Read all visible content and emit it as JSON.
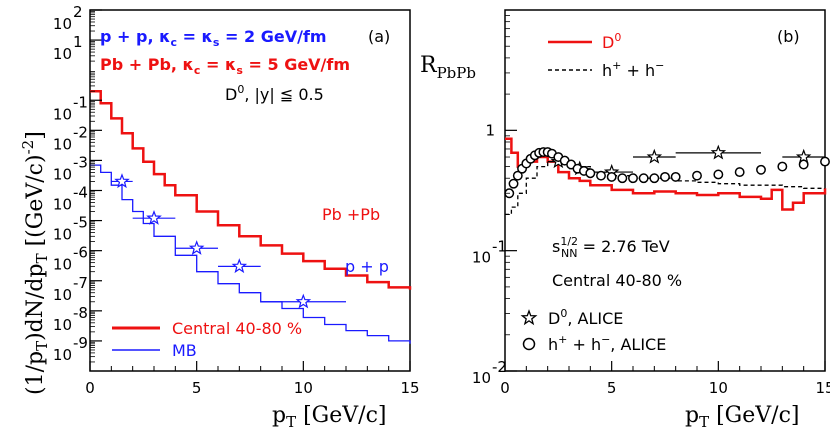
{
  "chart_data": [
    {
      "panel_label": "(a)",
      "type": "line",
      "xlabel": "p_T [GeV/c]",
      "ylabel": "(1/p_T)dN/dp_T [(GeV/c)^-2]",
      "xlim": [
        0,
        15
      ],
      "ylim": [
        1e-10,
        100
      ],
      "yscale": "log",
      "x_ticks": [
        "0",
        "5",
        "10",
        "15"
      ],
      "y_tick_mantissa": "10",
      "y_tick_exponents": [
        "-9",
        "-8",
        "-7",
        "-6",
        "-5",
        "-4",
        "-3",
        "-2",
        "-1",
        "1",
        "2"
      ],
      "annotations": [
        {
          "text": "p + p, κc = κs = 2 GeV/fm",
          "color": "#1a1aff"
        },
        {
          "text": "Pb + Pb, κc = κs = 5 GeV/fm",
          "color": "#ee1111"
        },
        {
          "text": "D0, |y| ≦ 0.5",
          "color": "#000000"
        },
        {
          "text": "Pb +Pb",
          "color": "#ee1111"
        },
        {
          "text": "p + p",
          "color": "#1a1aff"
        }
      ],
      "legend": [
        {
          "text": "Central 40-80 %",
          "color": "#ee1111"
        },
        {
          "text": "MB",
          "color": "#1a1aff"
        }
      ],
      "series": [
        {
          "color": "#ee1111",
          "x": [
            0.0,
            0.5,
            1,
            1.5,
            2,
            2.5,
            3,
            3.5,
            4,
            5,
            6,
            7,
            8,
            9,
            10,
            11,
            12,
            13,
            14,
            15
          ],
          "y": [
            0.2,
            0.08,
            0.025,
            0.008,
            0.0025,
            0.0009,
            0.00035,
            0.00015,
            7e-05,
            2e-05,
            7e-06,
            3e-06,
            1.5e-06,
            8e-07,
            4.5e-07,
            2.5e-07,
            1.5e-07,
            9e-08,
            6e-08,
            5e-08
          ]
        },
        {
          "color": "#1a1aff",
          "x": [
            0.0,
            0.5,
            1,
            1.5,
            2,
            2.5,
            3,
            4,
            5,
            6,
            7,
            8,
            9,
            10,
            11,
            12,
            13,
            14,
            15
          ],
          "y": [
            0.0007,
            0.0004,
            0.00015,
            5e-05,
            2e-05,
            8e-06,
            3e-06,
            7e-07,
            2e-07,
            8e-08,
            4e-08,
            2e-08,
            1.2e-08,
            6e-09,
            3.5e-09,
            2.2e-09,
            1.5e-09,
            1e-09,
            8e-10
          ]
        },
        {
          "color": "#1a1aff",
          "marker": "star",
          "x": [
            1.5,
            3,
            5,
            7,
            10
          ],
          "y": [
            0.0002,
            1.2e-05,
            1.2e-06,
            3e-07,
            2e-08
          ],
          "xerr": [
            0.5,
            1,
            1,
            1,
            2
          ]
        }
      ]
    },
    {
      "panel_label": "(b)",
      "type": "line",
      "ylabel": "R_PbPb",
      "xlabel": "p_T [GeV/c]",
      "xlim": [
        0,
        15
      ],
      "ylim": [
        0.01,
        10
      ],
      "yscale": "log",
      "x_ticks": [
        "0",
        "5",
        "10",
        "15"
      ],
      "y_tick_labels": [
        "10^-2",
        "10^-1",
        "1"
      ],
      "annotations": [
        {
          "text": "s_NN^1/2 = 2.76 TeV"
        },
        {
          "text": "Central 40-80 %"
        }
      ],
      "legend": [
        {
          "text": "D0",
          "color": "#ee1111"
        },
        {
          "text": "h+ + h-",
          "color": "#000000"
        },
        {
          "text": "D0, ALICE",
          "color": "#000000"
        },
        {
          "text": "h+ + h-, ALICE",
          "color": "#000000"
        }
      ],
      "series": [
        {
          "color": "#ee1111",
          "x": [
            0.0,
            0.3,
            0.6,
            1,
            1.5,
            2,
            2.5,
            3,
            3.5,
            4,
            5,
            6,
            7,
            8,
            9,
            10,
            11,
            12,
            12.5,
            13,
            13.5,
            14,
            15
          ],
          "y": [
            0.85,
            0.65,
            0.5,
            0.55,
            0.6,
            0.55,
            0.45,
            0.4,
            0.38,
            0.35,
            0.32,
            0.3,
            0.31,
            0.3,
            0.29,
            0.3,
            0.28,
            0.27,
            0.32,
            0.22,
            0.25,
            0.3,
            0.33
          ]
        },
        {
          "color": "#000000",
          "dashed": true,
          "x": [
            0.0,
            0.3,
            0.6,
            1,
            1.5,
            2,
            2.5,
            3,
            4,
            5,
            6,
            7,
            8,
            9,
            10,
            11,
            12,
            13,
            14,
            15
          ],
          "y": [
            0.2,
            0.23,
            0.3,
            0.4,
            0.5,
            0.55,
            0.55,
            0.5,
            0.45,
            0.42,
            0.4,
            0.4,
            0.38,
            0.37,
            0.36,
            0.35,
            0.35,
            0.34,
            0.33,
            0.33
          ]
        },
        {
          "color": "#000000",
          "marker": "star",
          "x": [
            2.5,
            3.5,
            5,
            7,
            10,
            14
          ],
          "y": [
            0.55,
            0.48,
            0.45,
            0.6,
            0.65,
            0.6
          ],
          "xerr": [
            0.5,
            0.5,
            1,
            1,
            2,
            1
          ]
        },
        {
          "color": "#000000",
          "marker": "circle",
          "x": [
            0.2,
            0.4,
            0.6,
            0.8,
            1.0,
            1.2,
            1.4,
            1.6,
            1.8,
            2.0,
            2.2,
            2.5,
            2.8,
            3.1,
            3.4,
            3.7,
            4.0,
            4.5,
            5.0,
            5.5,
            6.0,
            6.5,
            7.0,
            7.5,
            8.0,
            9.0,
            10.0,
            11.0,
            12.0,
            13.0,
            14.0,
            15.0
          ],
          "y": [
            0.3,
            0.36,
            0.42,
            0.48,
            0.53,
            0.58,
            0.62,
            0.65,
            0.66,
            0.66,
            0.64,
            0.6,
            0.56,
            0.52,
            0.48,
            0.46,
            0.44,
            0.42,
            0.41,
            0.4,
            0.4,
            0.4,
            0.4,
            0.41,
            0.41,
            0.42,
            0.43,
            0.45,
            0.47,
            0.5,
            0.52,
            0.55
          ]
        }
      ]
    }
  ]
}
